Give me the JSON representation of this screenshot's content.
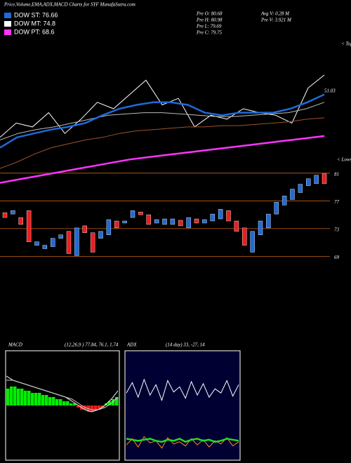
{
  "chart_data": [
    {
      "type": "candlestick",
      "title": "Price,Volume,EMA,ADX,MACD Charts for SYF MunafaSutra.com",
      "legend": [
        "DOW ST: 76.66",
        "DOW MT: 74.8",
        "DOW PT: 68.6"
      ],
      "stats": [
        "Pre O: 80.68",
        "Pre H: 80.98",
        "Pre L: 79.69",
        "Pre C: 79.75",
        "Avg V: 0.28 M",
        "Pre V: 3.921 M"
      ],
      "markers": [
        "< Tops",
        "< Lows"
      ],
      "ylim": [
        65.5,
        82.7
      ],
      "yticks": [
        81,
        77,
        73,
        69
      ],
      "open": [
        75.3,
        75.1,
        74.6,
        75.6,
        70.6,
        70.1,
        70.4,
        71.6,
        72.6,
        69.1,
        73.4,
        72.4,
        71.6,
        72.1,
        74.1,
        73.8,
        74.6,
        75.4,
        75.0,
        73.8,
        73.6,
        73.6,
        74.2,
        73.1,
        74.4,
        73.8,
        74.1,
        74.4,
        75.6,
        74.1,
        73.1,
        69.6,
        72.1,
        73.1,
        75.1,
        76.4,
        77.2,
        78.2,
        79.2,
        79.5,
        80.9
      ],
      "close": [
        74.6,
        75.6,
        73.6,
        71.1,
        71.1,
        70.6,
        71.6,
        72.1,
        69.4,
        73.1,
        72.4,
        69.6,
        72.6,
        74.3,
        73.1,
        74.1,
        75.6,
        75.0,
        73.6,
        74.3,
        74.4,
        74.4,
        73.4,
        74.6,
        73.8,
        74.3,
        75.1,
        75.8,
        74.1,
        72.6,
        70.6,
        72.6,
        74.1,
        75.1,
        76.8,
        77.7,
        78.7,
        79.4,
        80.2,
        80.7,
        79.5
      ]
    },
    {
      "type": "line",
      "annotation": "51.03",
      "ylim": [
        -15,
        100
      ],
      "series": [
        {
          "color": "#ffffff",
          "values": [
            24,
            35,
            32,
            43,
            27,
            38,
            51,
            46,
            57,
            68,
            49,
            54,
            32,
            41,
            38,
            46,
            43,
            41,
            35,
            62,
            72
          ]
        },
        {
          "color": "#bbbbbb",
          "values": [
            22,
            27,
            30,
            32,
            35,
            38,
            41,
            42,
            43,
            43,
            42,
            41,
            40,
            40,
            41,
            42,
            43,
            46,
            51
          ]
        },
        {
          "color": "#1e6ad8",
          "values": [
            16,
            24,
            27,
            30,
            32,
            35,
            41,
            46,
            49,
            51,
            51,
            49,
            43,
            41,
            43,
            43,
            43,
            46,
            51,
            57
          ]
        },
        {
          "color": "#a0522d",
          "values": [
            0,
            5,
            11,
            16,
            19,
            22,
            24,
            27,
            29,
            30,
            31,
            32,
            32,
            33,
            33,
            34,
            35,
            36,
            38,
            39
          ]
        },
        {
          "color": "#ff33ff",
          "values": [
            -11,
            -8,
            -5,
            -2,
            1,
            4,
            7,
            9,
            11,
            13,
            15,
            17,
            19,
            21,
            23,
            25
          ]
        }
      ]
    },
    {
      "type": "macd",
      "label": "MACD",
      "title": "(12,26,9 ) 77.84, 76.1, 1.74",
      "ylim": [
        -20,
        20
      ],
      "histogram": [
        8,
        9,
        9,
        8,
        8,
        7,
        7,
        6,
        6,
        6,
        5,
        5,
        4,
        4,
        3,
        3,
        2,
        2,
        1,
        1,
        -1,
        -2,
        -2,
        -3,
        -3,
        -2,
        -2,
        -1,
        1,
        2,
        3,
        4
      ],
      "series": [
        {
          "color": "#ffffff",
          "values": [
            14,
            12,
            11,
            10,
            9,
            8,
            7,
            6,
            5,
            4,
            2,
            0,
            -2,
            -3,
            -2,
            0,
            3,
            7
          ]
        },
        {
          "color": "#cccccc",
          "values": [
            12,
            12,
            11,
            10,
            9,
            8,
            7,
            6,
            5,
            4,
            3,
            1,
            -1,
            -2,
            -2,
            -1,
            1,
            4
          ]
        }
      ]
    },
    {
      "type": "adx",
      "label": "ADX",
      "title": "(14 day) 33, -27, 14",
      "ylim": [
        0,
        100
      ],
      "series": [
        {
          "color": "#ffffff",
          "values": [
            62,
            72,
            58,
            75,
            60,
            70,
            55,
            74,
            63,
            68,
            57,
            73,
            60,
            71,
            58,
            66,
            62,
            74,
            59,
            70
          ]
        },
        {
          "color": "#ff8c1a",
          "values": [
            12,
            18,
            10,
            20,
            14,
            16,
            9,
            19,
            13,
            15,
            11,
            18,
            12,
            17,
            10,
            16,
            13,
            19,
            11,
            15
          ]
        },
        {
          "color": "#22dd22",
          "values": [
            18,
            17,
            16,
            17,
            18,
            16,
            15,
            17,
            16,
            18,
            15,
            17,
            18,
            16,
            17,
            15,
            16,
            18,
            17,
            16
          ]
        }
      ]
    }
  ]
}
